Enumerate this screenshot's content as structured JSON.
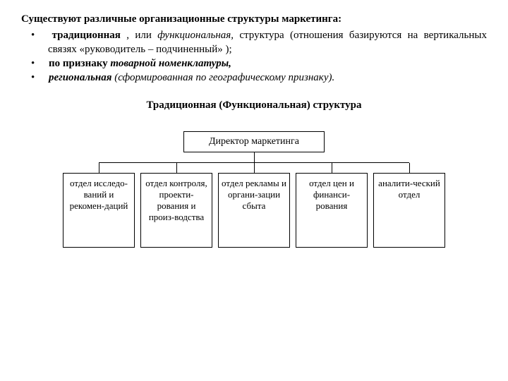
{
  "text": {
    "intro": "Существуют различные организационные структуры маркетинга:",
    "bullets": {
      "b1_pre": "традиционная",
      "b1_mid": " , или ",
      "b1_ital": "функциональная,",
      "b1_post": " структура (отношения базируются на вертикальных связях «руководитель – подчиненный» );",
      "b2_pre": "по признаку ",
      "b2_ital": "товарной номенклатуры,",
      "b3_ital": "региональная ",
      "b3_post": "(сформированная по географическому признаку)."
    },
    "diagram_title": "Традиционная (Функциональная) структура"
  },
  "chart": {
    "type": "tree",
    "top_node": "Директор маркетинга",
    "children": [
      "отдел исследо-ваний и рекомен-даций",
      "отдел контроля, проекти-рования и произ-водства",
      "отдел рекламы и органи-зации сбыта",
      "отдел цен и финанси-рования",
      "аналити-ческий отдел"
    ],
    "style": {
      "border_color": "#000000",
      "background_color": "#ffffff",
      "text_color": "#000000",
      "top_box_width": 170,
      "child_box_width": 92,
      "child_box_min_height": 92,
      "font_size_top": 14,
      "font_size_child": 13,
      "h_line_width": 440,
      "children_container_width": 540
    }
  }
}
